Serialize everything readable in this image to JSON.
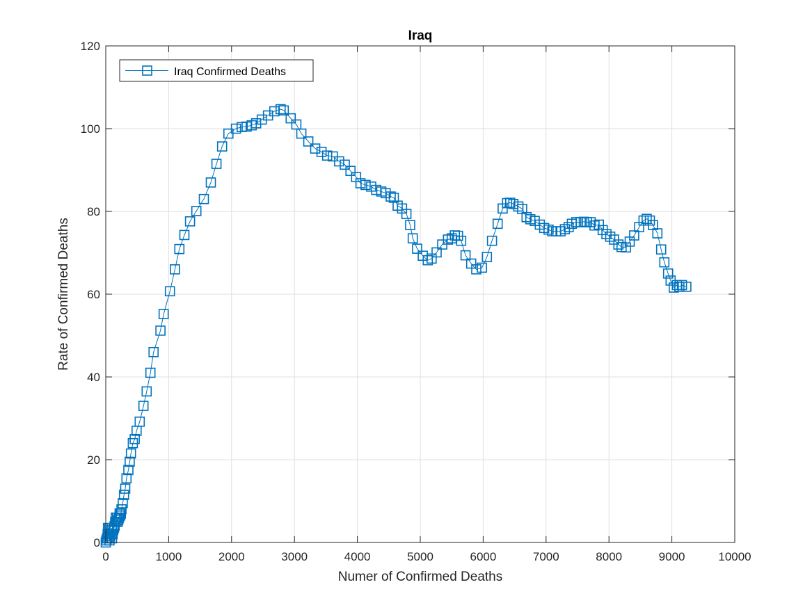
{
  "chart_data": {
    "type": "line",
    "title": "Iraq",
    "xlabel": "Numer of Confirmed Deaths",
    "ylabel": "Rate of Confirmed Deaths",
    "xlim": [
      0,
      10000
    ],
    "ylim": [
      0,
      120
    ],
    "xticks": [
      0,
      1000,
      2000,
      3000,
      4000,
      5000,
      6000,
      7000,
      8000,
      9000,
      10000
    ],
    "yticks": [
      0,
      20,
      40,
      60,
      80,
      100,
      120
    ],
    "grid": true,
    "legend_position": "top-left",
    "series": [
      {
        "name": "Iraq Confirmed Deaths",
        "color": "#0072BD",
        "marker": "square",
        "points": [
          [
            0,
            0
          ],
          [
            10,
            0.5
          ],
          [
            20,
            1
          ],
          [
            30,
            2
          ],
          [
            35,
            3.5
          ],
          [
            40,
            1
          ],
          [
            50,
            2
          ],
          [
            55,
            3.5
          ],
          [
            60,
            0.5
          ],
          [
            70,
            1.5
          ],
          [
            80,
            2
          ],
          [
            90,
            3
          ],
          [
            95,
            3.5
          ],
          [
            100,
            1
          ],
          [
            110,
            2
          ],
          [
            120,
            3
          ],
          [
            130,
            3.5
          ],
          [
            140,
            4
          ],
          [
            150,
            5
          ],
          [
            160,
            6
          ],
          [
            170,
            5
          ],
          [
            180,
            6
          ],
          [
            190,
            5
          ],
          [
            200,
            5.5
          ],
          [
            210,
            6
          ],
          [
            220,
            7
          ],
          [
            230,
            6.5
          ],
          [
            240,
            7
          ],
          [
            250,
            8
          ],
          [
            270,
            9.5
          ],
          [
            290,
            11.5
          ],
          [
            310,
            13
          ],
          [
            330,
            15.5
          ],
          [
            360,
            17.5
          ],
          [
            380,
            19.5
          ],
          [
            400,
            21.5
          ],
          [
            430,
            24
          ],
          [
            460,
            25
          ],
          [
            490,
            27
          ],
          [
            540,
            29.2
          ],
          [
            600,
            33
          ],
          [
            650,
            36.5
          ],
          [
            710,
            41
          ],
          [
            760,
            46
          ],
          [
            870,
            51.2
          ],
          [
            920,
            55.2
          ],
          [
            1020,
            60.7
          ],
          [
            1100,
            66
          ],
          [
            1170,
            70.9
          ],
          [
            1250,
            74.3
          ],
          [
            1340,
            77.6
          ],
          [
            1440,
            80.1
          ],
          [
            1560,
            83
          ],
          [
            1670,
            87
          ],
          [
            1760,
            91.5
          ],
          [
            1850,
            95.7
          ],
          [
            1950,
            98.8
          ],
          [
            2070,
            100
          ],
          [
            2160,
            100.4
          ],
          [
            2240,
            100.5
          ],
          [
            2320,
            100.8
          ],
          [
            2390,
            101.3
          ],
          [
            2480,
            102.2
          ],
          [
            2580,
            103.2
          ],
          [
            2680,
            104.2
          ],
          [
            2780,
            104.7
          ],
          [
            2830,
            104.4
          ],
          [
            2940,
            102.5
          ],
          [
            3030,
            101
          ],
          [
            3110,
            98.8
          ],
          [
            3220,
            96.9
          ],
          [
            3330,
            95.2
          ],
          [
            3430,
            94.4
          ],
          [
            3520,
            93.5
          ],
          [
            3610,
            93.3
          ],
          [
            3710,
            92.1
          ],
          [
            3800,
            91.3
          ],
          [
            3890,
            89.8
          ],
          [
            3980,
            88.3
          ],
          [
            4050,
            86.8
          ],
          [
            4130,
            86.4
          ],
          [
            4220,
            86
          ],
          [
            4300,
            85.2
          ],
          [
            4380,
            84.8
          ],
          [
            4450,
            84.4
          ],
          [
            4530,
            83.6
          ],
          [
            4580,
            83.3
          ],
          [
            4640,
            81.4
          ],
          [
            4710,
            80.7
          ],
          [
            4780,
            79.4
          ],
          [
            4840,
            76.7
          ],
          [
            4880,
            73.5
          ],
          [
            4950,
            71
          ],
          [
            5040,
            69.3
          ],
          [
            5120,
            68.2
          ],
          [
            5180,
            68.6
          ],
          [
            5260,
            70.1
          ],
          [
            5350,
            72
          ],
          [
            5440,
            73.2
          ],
          [
            5500,
            73.5
          ],
          [
            5550,
            74.2
          ],
          [
            5600,
            74.1
          ],
          [
            5650,
            72.9
          ],
          [
            5720,
            69.4
          ],
          [
            5810,
            67.4
          ],
          [
            5890,
            66
          ],
          [
            5980,
            66.4
          ],
          [
            6060,
            69
          ],
          [
            6140,
            72.9
          ],
          [
            6230,
            77
          ],
          [
            6310,
            80.7
          ],
          [
            6380,
            82
          ],
          [
            6430,
            82.1
          ],
          [
            6480,
            81.8
          ],
          [
            6560,
            81.2
          ],
          [
            6620,
            80.6
          ],
          [
            6690,
            78.6
          ],
          [
            6750,
            78.1
          ],
          [
            6820,
            77.7
          ],
          [
            6900,
            76.8
          ],
          [
            6970,
            76
          ],
          [
            7040,
            75.6
          ],
          [
            7100,
            75.2
          ],
          [
            7160,
            75.2
          ],
          [
            7230,
            75.2
          ],
          [
            7300,
            75.7
          ],
          [
            7360,
            76.2
          ],
          [
            7410,
            77
          ],
          [
            7480,
            77.4
          ],
          [
            7550,
            77.4
          ],
          [
            7600,
            77.5
          ],
          [
            7650,
            77.4
          ],
          [
            7710,
            77.4
          ],
          [
            7770,
            76.6
          ],
          [
            7840,
            76.8
          ],
          [
            7900,
            75.5
          ],
          [
            7960,
            74.5
          ],
          [
            8020,
            73.9
          ],
          [
            8080,
            73.2
          ],
          [
            8150,
            72
          ],
          [
            8200,
            71.4
          ],
          [
            8270,
            71.3
          ],
          [
            8330,
            72.7
          ],
          [
            8400,
            74.2
          ],
          [
            8480,
            76.2
          ],
          [
            8550,
            77.8
          ],
          [
            8600,
            78.2
          ],
          [
            8650,
            77.8
          ],
          [
            8700,
            76.7
          ],
          [
            8770,
            74.7
          ],
          [
            8830,
            70.8
          ],
          [
            8880,
            67.7
          ],
          [
            8940,
            65
          ],
          [
            8980,
            63.3
          ],
          [
            9030,
            61.6
          ],
          [
            9080,
            62.2
          ],
          [
            9120,
            61.8
          ],
          [
            9160,
            62.2
          ],
          [
            9230,
            61.8
          ]
        ]
      }
    ]
  }
}
